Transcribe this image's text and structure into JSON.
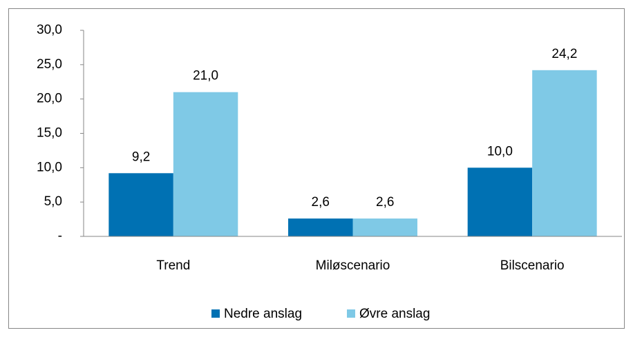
{
  "chart_data": {
    "type": "bar",
    "categories": [
      "Trend",
      "Miløscenario",
      "Bilscenario"
    ],
    "series": [
      {
        "name": "Nedre anslag",
        "color": "#0071b3",
        "values": [
          9.2,
          2.6,
          10.0
        ],
        "value_labels": [
          "9,2",
          "2,6",
          "10,0"
        ]
      },
      {
        "name": "Øvre anslag",
        "color": "#7fc9e6",
        "values": [
          21.0,
          2.6,
          24.2
        ],
        "value_labels": [
          "21,0",
          "2,6",
          "24,2"
        ]
      }
    ],
    "ylim": [
      0,
      30
    ],
    "yticks": [
      {
        "value": 0,
        "label": "-"
      },
      {
        "value": 5,
        "label": "5,0"
      },
      {
        "value": 10,
        "label": "10,0"
      },
      {
        "value": 15,
        "label": "15,0"
      },
      {
        "value": 20,
        "label": "20,0"
      },
      {
        "value": 25,
        "label": "25,0"
      },
      {
        "value": 30,
        "label": "30,0"
      }
    ],
    "grid": false,
    "legend": "bottom"
  }
}
